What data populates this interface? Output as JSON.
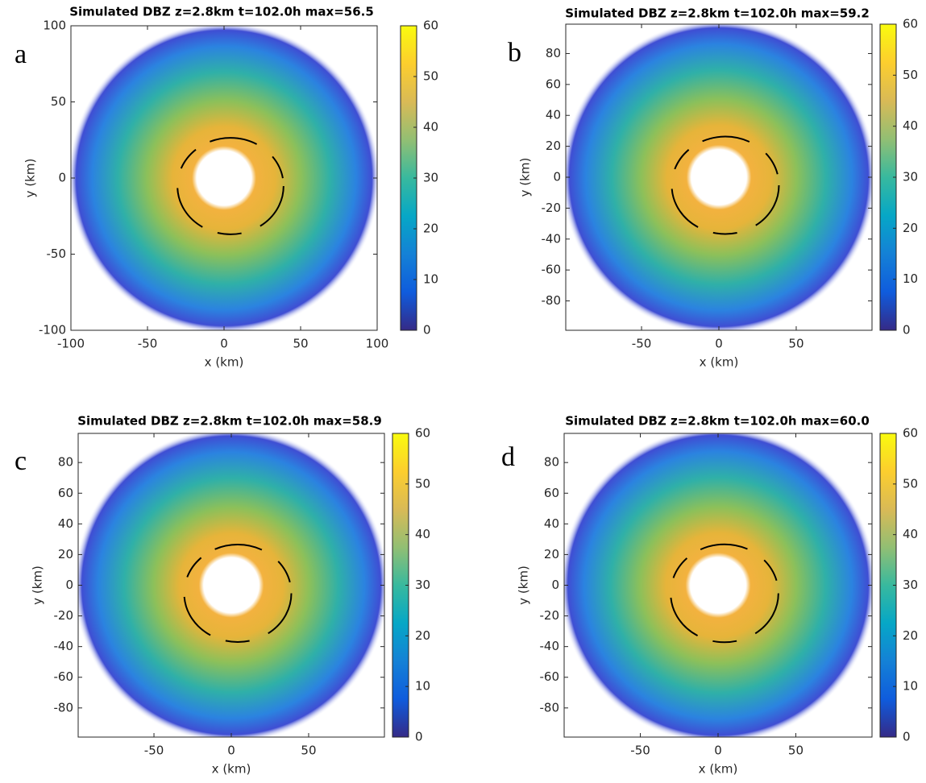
{
  "chart_data": [
    {
      "type": "heatmap",
      "label": "a",
      "title": "Simulated DBZ z=2.8km t=102.0h max=56.5",
      "x_label": "x (km)",
      "y_label": "y (km)",
      "xlim": [
        -100,
        100
      ],
      "ylim": [
        -100,
        100
      ],
      "xticks": [
        -100,
        -50,
        0,
        50,
        100
      ],
      "yticks": [
        -100,
        -50,
        0,
        50,
        100
      ],
      "colormap": "parula",
      "clim": [
        0,
        60
      ],
      "cticks": [
        0,
        10,
        20,
        30,
        40,
        50,
        60
      ]
    },
    {
      "type": "heatmap",
      "label": "b",
      "title": "Simulated DBZ z=2.8km t=102.0h max=59.2",
      "x_label": "x (km)",
      "y_label": "y (km)",
      "xlim": [
        -99,
        99
      ],
      "ylim": [
        -99,
        99
      ],
      "xticks": [
        -50,
        0,
        50
      ],
      "yticks": [
        -80,
        -60,
        -40,
        -20,
        0,
        20,
        40,
        60,
        80
      ],
      "colormap": "parula",
      "clim": [
        0,
        60
      ],
      "cticks": [
        0,
        10,
        20,
        30,
        40,
        50,
        60
      ]
    },
    {
      "type": "heatmap",
      "label": "c",
      "title": "Simulated DBZ z=2.8km t=102.0h max=58.9",
      "x_label": "x (km)",
      "y_label": "y (km)",
      "xlim": [
        -99,
        99
      ],
      "ylim": [
        -99,
        99
      ],
      "xticks": [
        -50,
        0,
        50
      ],
      "yticks": [
        -80,
        -60,
        -40,
        -20,
        0,
        20,
        40,
        60,
        80
      ],
      "colormap": "parula",
      "clim": [
        0,
        60
      ],
      "cticks": [
        0,
        10,
        20,
        30,
        40,
        50,
        60
      ]
    },
    {
      "type": "heatmap",
      "label": "d",
      "title": "Simulated DBZ z=2.8km t=102.0h max=60.0",
      "x_label": "x (km)",
      "y_label": "y (km)",
      "xlim": [
        -99,
        99
      ],
      "ylim": [
        -99,
        99
      ],
      "xticks": [
        -50,
        0,
        50
      ],
      "yticks": [
        -80,
        -60,
        -40,
        -20,
        0,
        20,
        40,
        60,
        80
      ],
      "colormap": "parula",
      "clim": [
        0,
        60
      ],
      "cticks": [
        0,
        10,
        20,
        30,
        40,
        50,
        60
      ]
    }
  ]
}
